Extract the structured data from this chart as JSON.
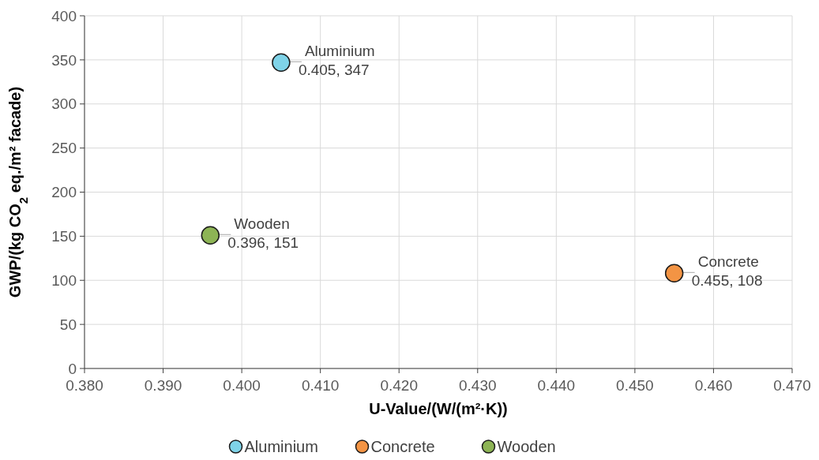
{
  "chart_data": {
    "type": "scatter",
    "xlabel": "U-Value/(W/(m²·K))",
    "ylabel": "GWP/(kg CO$_{2}$ eq./m² facade)",
    "xlim": [
      0.38,
      0.47
    ],
    "xticks": [
      {
        "value": 0.38,
        "label": "0.380"
      },
      {
        "value": 0.39,
        "label": "0.390"
      },
      {
        "value": 0.4,
        "label": "0.400"
      },
      {
        "value": 0.41,
        "label": "0.410"
      },
      {
        "value": 0.42,
        "label": "0.420"
      },
      {
        "value": 0.43,
        "label": "0.430"
      },
      {
        "value": 0.44,
        "label": "0.440"
      },
      {
        "value": 0.45,
        "label": "0.450"
      },
      {
        "value": 0.46,
        "label": "0.460"
      },
      {
        "value": 0.47,
        "label": "0.470"
      }
    ],
    "ylim": [
      0,
      400
    ],
    "yticks": [
      0,
      50,
      100,
      150,
      200,
      250,
      300,
      350,
      400
    ],
    "grid": true,
    "legend": "bottom",
    "marker": "circle",
    "series": [
      {
        "name": "Aluminium",
        "color": "#7fd3e8",
        "x": [
          0.405
        ],
        "values": [
          347
        ],
        "value_labels": [
          "0.405, 347"
        ]
      },
      {
        "name": "Concrete",
        "color": "#f39444",
        "x": [
          0.455
        ],
        "values": [
          108
        ],
        "value_labels": [
          "0.455, 108"
        ]
      },
      {
        "name": "Wooden",
        "color": "#8db455",
        "x": [
          0.396
        ],
        "values": [
          151
        ],
        "value_labels": [
          "0.396, 151"
        ]
      }
    ]
  }
}
